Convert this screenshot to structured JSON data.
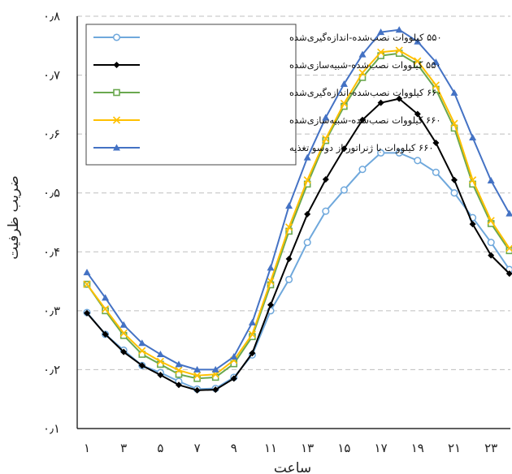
{
  "chart_data": {
    "type": "line",
    "title": "",
    "xlabel": "ساعت",
    "ylabel": "ضریب ظرفیت",
    "xlim": [
      0,
      24
    ],
    "ylim": [
      0.1,
      0.8
    ],
    "y_ticks": [
      0.1,
      0.2,
      0.3,
      0.4,
      0.5,
      0.6,
      0.7,
      0.8
    ],
    "y_tick_labels": [
      "۰٫۱",
      "۰٫۲",
      "۰٫۳",
      "۰٫۴",
      "۰٫۵",
      "۰٫۶",
      "۰٫۷",
      "۰٫۸"
    ],
    "x_ticks": [
      1,
      3,
      5,
      7,
      9,
      11,
      13,
      15,
      17,
      19,
      21,
      23
    ],
    "x_tick_labels": [
      "۱",
      "۳",
      "۵",
      "۷",
      "۹",
      "۱۱",
      "۱۳",
      "۱۵",
      "۱۷",
      "۱۹",
      "۲۱",
      "۲۳"
    ],
    "grid": "horizontal-dashed",
    "legend_position": "top-left",
    "x": [
      1,
      2,
      3,
      4,
      5,
      6,
      7,
      8,
      9,
      10,
      11,
      12,
      13,
      14,
      15,
      16,
      17,
      18,
      19,
      20,
      21,
      22,
      23,
      24
    ],
    "series": [
      {
        "name": "۵۵۰ کیلووات نصب‌شده-اندازه‌گیری‌شده",
        "color": "#6fa8dc",
        "marker": "circle-open",
        "values": [
          0.297,
          0.26,
          0.233,
          0.207,
          0.195,
          0.18,
          0.167,
          0.168,
          0.187,
          0.225,
          0.3,
          0.353,
          0.416,
          0.469,
          0.505,
          0.54,
          0.568,
          0.568,
          0.555,
          0.535,
          0.5,
          0.458,
          0.416,
          0.37
        ]
      },
      {
        "name": "۵۵۰ کیلووات نصب‌شده-شبیه‌سازی‌شده",
        "color": "#000000",
        "marker": "diamond-filled",
        "values": [
          0.296,
          0.26,
          0.23,
          0.207,
          0.191,
          0.174,
          0.165,
          0.166,
          0.185,
          0.228,
          0.31,
          0.388,
          0.464,
          0.523,
          0.575,
          0.624,
          0.653,
          0.66,
          0.634,
          0.585,
          0.522,
          0.447,
          0.394,
          0.363
        ]
      },
      {
        "name": "۶۶۰ کیلووات نصب‌شده-اندازه‌گیری‌شده",
        "color": "#6aa84f",
        "marker": "square-open",
        "values": [
          0.345,
          0.3,
          0.258,
          0.226,
          0.209,
          0.192,
          0.185,
          0.187,
          0.21,
          0.256,
          0.344,
          0.435,
          0.515,
          0.589,
          0.647,
          0.696,
          0.733,
          0.737,
          0.718,
          0.676,
          0.61,
          0.515,
          0.448,
          0.402
        ]
      },
      {
        "name": "۶۶۰ کیلووات نصب‌شده-شبیه‌سازی‌شده",
        "color": "#ffc000",
        "marker": "x",
        "values": [
          0.345,
          0.303,
          0.262,
          0.232,
          0.214,
          0.199,
          0.19,
          0.192,
          0.216,
          0.26,
          0.35,
          0.442,
          0.522,
          0.592,
          0.652,
          0.704,
          0.739,
          0.742,
          0.724,
          0.683,
          0.618,
          0.522,
          0.453,
          0.406
        ]
      },
      {
        "name": "۶۶۰ کیلووات با ژنراتور از دوسو تغذیه",
        "color": "#4472c4",
        "marker": "triangle-filled",
        "values": [
          0.365,
          0.322,
          0.276,
          0.245,
          0.226,
          0.209,
          0.2,
          0.2,
          0.222,
          0.28,
          0.373,
          0.478,
          0.56,
          0.628,
          0.685,
          0.735,
          0.773,
          0.777,
          0.757,
          0.722,
          0.67,
          0.594,
          0.521,
          0.465
        ]
      }
    ]
  }
}
